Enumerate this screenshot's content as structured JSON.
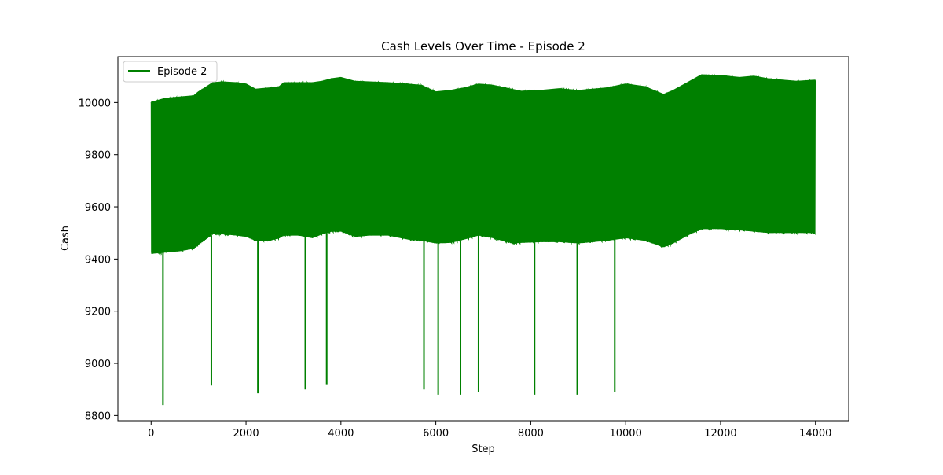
{
  "chart_data": {
    "type": "line",
    "title": "Cash Levels Over Time - Episode 2",
    "xlabel": "Step",
    "ylabel": "Cash",
    "xlim": [
      -700,
      14700
    ],
    "ylim": [
      8780,
      10176
    ],
    "xticks": [
      0,
      2000,
      4000,
      6000,
      8000,
      10000,
      12000,
      14000
    ],
    "yticks": [
      8800,
      9000,
      9200,
      9400,
      9600,
      9800,
      10000
    ],
    "grid": false,
    "legend_position": "top-left",
    "series": [
      {
        "name": "Episode 2",
        "color": "#008000",
        "upper": [
          [
            0,
            10000
          ],
          [
            300,
            10015
          ],
          [
            600,
            10020
          ],
          [
            900,
            10025
          ],
          [
            1000,
            10040
          ],
          [
            1300,
            10075
          ],
          [
            1500,
            10078
          ],
          [
            1800,
            10075
          ],
          [
            2000,
            10070
          ],
          [
            2200,
            10050
          ],
          [
            2500,
            10055
          ],
          [
            2700,
            10060
          ],
          [
            2800,
            10075
          ],
          [
            3100,
            10075
          ],
          [
            3400,
            10075
          ],
          [
            3600,
            10080
          ],
          [
            3800,
            10090
          ],
          [
            4000,
            10095
          ],
          [
            4300,
            10080
          ],
          [
            4600,
            10078
          ],
          [
            5000,
            10075
          ],
          [
            5400,
            10070
          ],
          [
            5700,
            10065
          ],
          [
            6000,
            10040
          ],
          [
            6300,
            10045
          ],
          [
            6600,
            10055
          ],
          [
            6900,
            10070
          ],
          [
            7200,
            10065
          ],
          [
            7600,
            10050
          ],
          [
            7800,
            10042
          ],
          [
            8200,
            10045
          ],
          [
            8600,
            10052
          ],
          [
            9000,
            10045
          ],
          [
            9300,
            10050
          ],
          [
            9600,
            10055
          ],
          [
            10000,
            10070
          ],
          [
            10400,
            10060
          ],
          [
            10800,
            10030
          ],
          [
            11000,
            10045
          ],
          [
            11300,
            10075
          ],
          [
            11600,
            10105
          ],
          [
            12000,
            10102
          ],
          [
            12400,
            10095
          ],
          [
            12700,
            10100
          ],
          [
            13000,
            10090
          ],
          [
            13300,
            10085
          ],
          [
            13600,
            10080
          ],
          [
            14000,
            10085
          ]
        ],
        "lower": [
          [
            0,
            9420
          ],
          [
            300,
            9425
          ],
          [
            600,
            9430
          ],
          [
            900,
            9440
          ],
          [
            1000,
            9455
          ],
          [
            1300,
            9495
          ],
          [
            1500,
            9495
          ],
          [
            1800,
            9490
          ],
          [
            2000,
            9485
          ],
          [
            2200,
            9470
          ],
          [
            2500,
            9470
          ],
          [
            2700,
            9480
          ],
          [
            2800,
            9490
          ],
          [
            3100,
            9490
          ],
          [
            3400,
            9480
          ],
          [
            3600,
            9495
          ],
          [
            3800,
            9505
          ],
          [
            4000,
            9505
          ],
          [
            4300,
            9485
          ],
          [
            4600,
            9490
          ],
          [
            5000,
            9490
          ],
          [
            5400,
            9475
          ],
          [
            5700,
            9470
          ],
          [
            6000,
            9460
          ],
          [
            6300,
            9462
          ],
          [
            6600,
            9475
          ],
          [
            6900,
            9490
          ],
          [
            7200,
            9480
          ],
          [
            7600,
            9460
          ],
          [
            7800,
            9462
          ],
          [
            8200,
            9465
          ],
          [
            8600,
            9465
          ],
          [
            9000,
            9460
          ],
          [
            9300,
            9465
          ],
          [
            9600,
            9470
          ],
          [
            10000,
            9480
          ],
          [
            10400,
            9470
          ],
          [
            10800,
            9445
          ],
          [
            11000,
            9460
          ],
          [
            11300,
            9490
          ],
          [
            11600,
            9515
          ],
          [
            12000,
            9515
          ],
          [
            12400,
            9510
          ],
          [
            12700,
            9505
          ],
          [
            13000,
            9500
          ],
          [
            13300,
            9500
          ],
          [
            13600,
            9500
          ],
          [
            14000,
            9500
          ]
        ],
        "spikes": [
          [
            250,
            8840
          ],
          [
            1270,
            8915
          ],
          [
            2250,
            8885
          ],
          [
            3250,
            8900
          ],
          [
            3700,
            8920
          ],
          [
            5750,
            8900
          ],
          [
            6050,
            8880
          ],
          [
            6520,
            8880
          ],
          [
            6900,
            8890
          ],
          [
            8080,
            8880
          ],
          [
            8980,
            8880
          ],
          [
            9770,
            8890
          ]
        ]
      }
    ]
  }
}
